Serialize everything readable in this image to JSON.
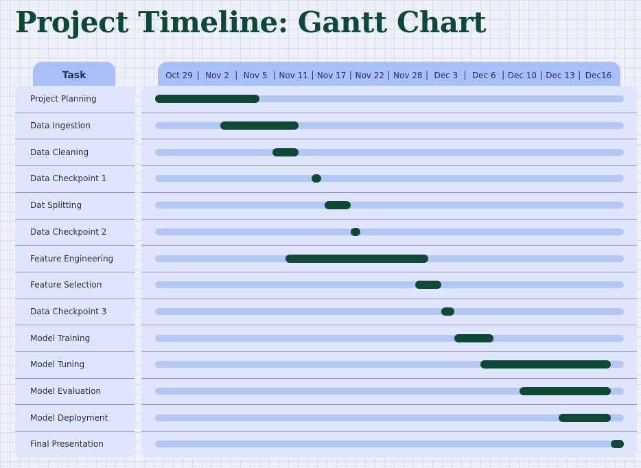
{
  "title": "Project Timeline: Gantt Chart",
  "chart_data": {
    "type": "gantt",
    "title": "Project Timeline: Gantt Chart",
    "task_column_label": "Task",
    "date_ticks": [
      "Oct 29",
      "Nov 2",
      "Nov 5",
      "Nov 11",
      "Nov 17",
      "Nov 22",
      "Nov 28",
      "Dec 3",
      "Dec 6",
      "Dec 10",
      "Dec 13",
      "Dec16"
    ],
    "date_separator": "|",
    "tasks": [
      {
        "name": "Project Planning",
        "start": "2024-10-28",
        "end": "2024-11-05"
      },
      {
        "name": "Data Ingestion",
        "start": "2024-11-02",
        "end": "2024-11-08"
      },
      {
        "name": "Data Cleaning",
        "start": "2024-11-06",
        "end": "2024-11-08"
      },
      {
        "name": "Data Checkpoint 1",
        "start": "2024-11-09",
        "end": "2024-11-09"
      },
      {
        "name": "Dat Splitting",
        "start": "2024-11-10",
        "end": "2024-11-12"
      },
      {
        "name": "Data Checkpoint 2",
        "start": "2024-11-12",
        "end": "2024-11-12"
      },
      {
        "name": "Feature Engineering",
        "start": "2024-11-07",
        "end": "2024-11-18"
      },
      {
        "name": "Feature Selection",
        "start": "2024-11-17",
        "end": "2024-11-19"
      },
      {
        "name": "Data Checkpoint 3",
        "start": "2024-11-19",
        "end": "2024-11-20"
      },
      {
        "name": "Model Training",
        "start": "2024-11-20",
        "end": "2024-11-23"
      },
      {
        "name": "Model Tuning",
        "start": "2024-11-22",
        "end": "2024-12-02"
      },
      {
        "name": "Model Evaluation",
        "start": "2024-11-25",
        "end": "2024-12-02"
      },
      {
        "name": "Model Deployment",
        "start": "2024-11-28",
        "end": "2024-12-02"
      },
      {
        "name": "Final Presentation",
        "start": "2024-12-02",
        "end": "2024-12-03"
      }
    ]
  },
  "colors": {
    "title": "#0c4a36",
    "bar": "#0c4a36",
    "track": "#b4c8f8",
    "header": "#a8bff8",
    "panel": "#dfe5fb"
  }
}
